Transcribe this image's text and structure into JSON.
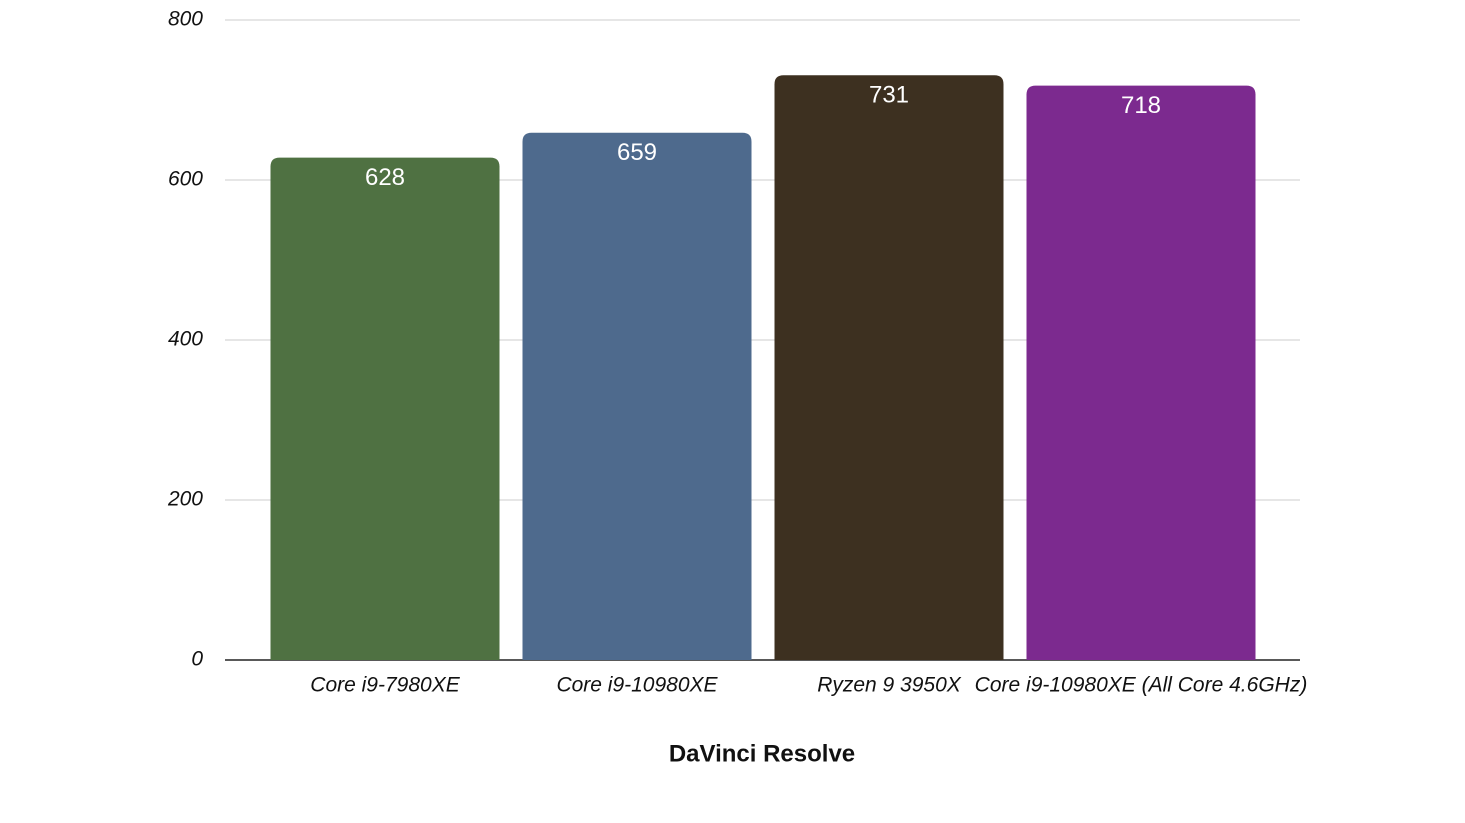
{
  "chart_data": {
    "type": "bar",
    "categories": [
      "Core i9-7980XE",
      "Core i9-10980XE",
      "Ryzen 9 3950X",
      "Core i9-10980XE (All Core 4.6GHz)"
    ],
    "values": [
      628,
      659,
      731,
      718
    ],
    "colors": [
      "#4f7142",
      "#4e6a8d",
      "#3d3020",
      "#7c2a8f"
    ],
    "x_label": "DaVinci Resolve",
    "ylim": [
      0,
      800
    ],
    "yticks": [
      0,
      200,
      400,
      600,
      800
    ],
    "grid": true
  }
}
